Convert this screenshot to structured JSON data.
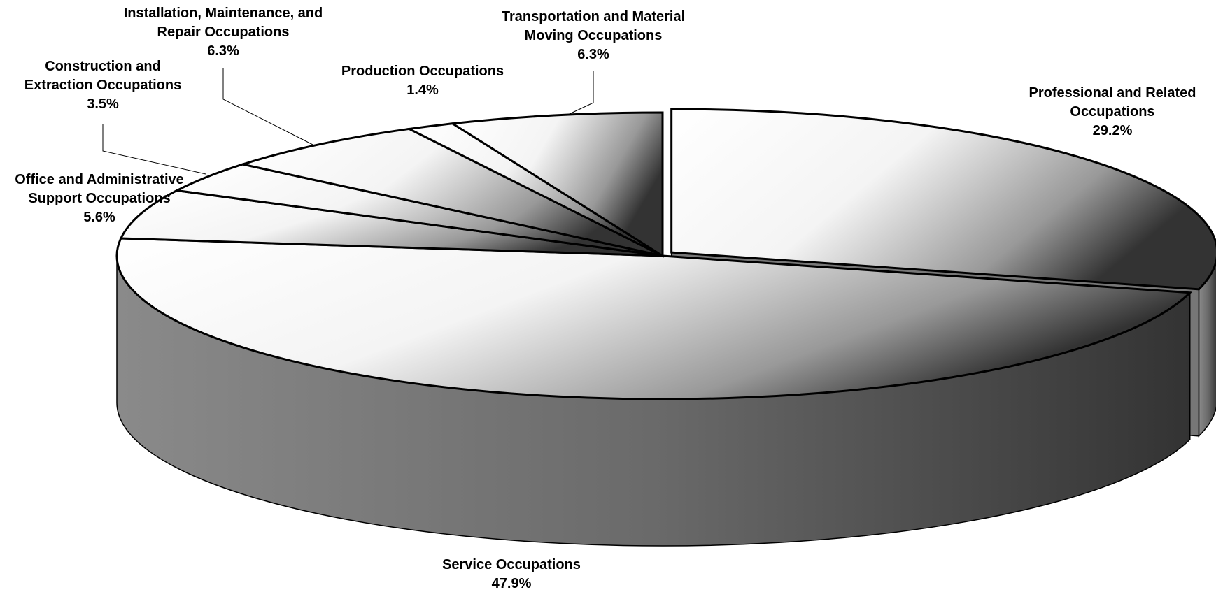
{
  "chart_data": {
    "type": "pie3d",
    "categories": [
      "Professional and Related Occupations",
      "Service Occupations",
      "Office and Administrative Support Occupations",
      "Construction and Extraction Occupations",
      "Installation, Maintenance, and Repair Occupations",
      "Production Occupations",
      "Transportation and Material Moving Occupations"
    ],
    "values": [
      29.2,
      47.9,
      5.6,
      3.5,
      6.3,
      1.4,
      6.3
    ],
    "value_labels": [
      "29.2%",
      "47.9%",
      "5.6%",
      "3.5%",
      "6.3%",
      "1.4%",
      "6.3%"
    ],
    "exploded": [
      0
    ],
    "colors": {
      "top": "#ffffff",
      "shade": "#333333",
      "side": "#777777"
    }
  }
}
